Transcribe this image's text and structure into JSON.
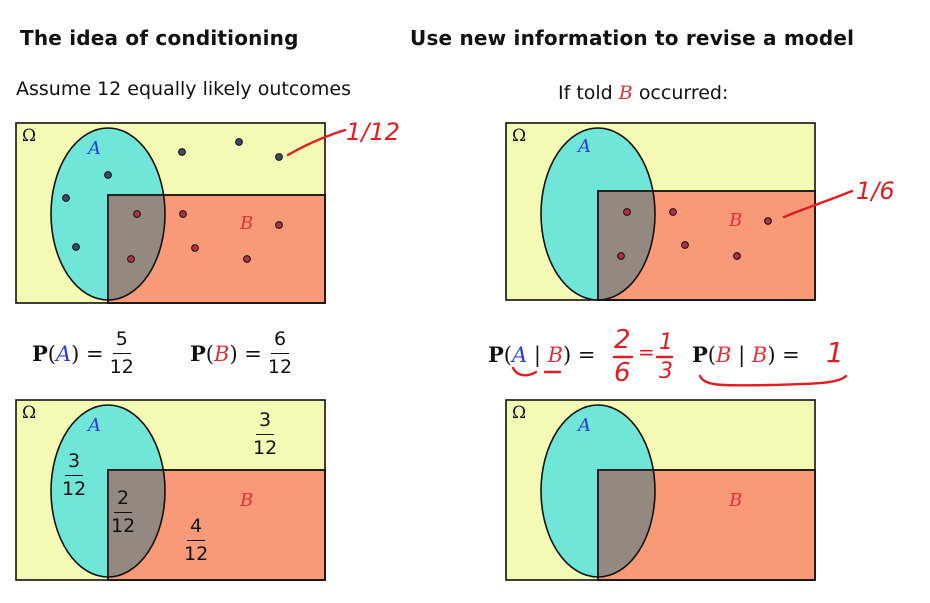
{
  "titles": {
    "left": "The idea of conditioning",
    "right": "Use new information to revise a model"
  },
  "subtitles": {
    "left": "Assume 12 equally likely outcomes",
    "right_prefix": "If told",
    "right_event": "B",
    "right_suffix": "occurred:"
  },
  "labels": {
    "omega": "Ω",
    "A": "A",
    "B": "B"
  },
  "probabilities": {
    "pA_name": "P",
    "pA_event": "A",
    "pA_num": "5",
    "pA_den": "12",
    "pB_name": "P",
    "pB_event": "B",
    "pB_num": "6",
    "pB_den": "12",
    "pAgB_name": "P",
    "pAgB_event": "A",
    "pAgB_given": "B",
    "pBgB_name": "P",
    "pBgB_event": "B",
    "pBgB_given": "B"
  },
  "region_fractions": {
    "a_only": {
      "num": "3",
      "den": "12"
    },
    "a_and_b": {
      "num": "2",
      "den": "12"
    },
    "b_only": {
      "num": "4",
      "den": "12"
    },
    "outside": {
      "num": "3",
      "den": "12"
    }
  },
  "handwritten": {
    "outcome_prob": "1/12",
    "conditional_outcome_prob": "1/6",
    "pAgB_value_num": "2",
    "pAgB_value_den": "6",
    "pAgB_simplified_num": "1",
    "pAgB_simplified_den": "3",
    "pBgB_value": "1"
  },
  "colors": {
    "omega_fill": "#f4f9b4",
    "a_fill": "#6fe6d8",
    "b_fill": "#f89a78",
    "overlap_fill": "#938980",
    "ink_red": "#e31b23",
    "math_blue": "#2a3fd0",
    "math_red": "#e0303a"
  }
}
